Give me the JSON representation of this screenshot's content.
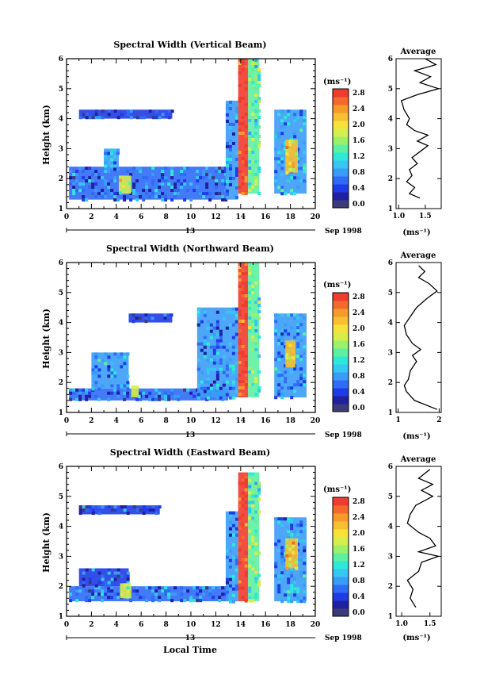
{
  "chart_data": [
    {
      "type": "heatmap",
      "title": "Spectral Width (Vertical Beam)",
      "ylabel": "Height (km)",
      "xlim": [
        0,
        20
      ],
      "ylim": [
        1,
        6
      ],
      "x_ticks": [
        "0",
        "2",
        "4",
        "6",
        "8",
        "10",
        "12",
        "14",
        "16",
        "18",
        "20"
      ],
      "y_ticks": [
        "1",
        "2",
        "3",
        "4",
        "5",
        "6"
      ],
      "date_day": "13",
      "date_label": "Sep 1998",
      "colorbar": {
        "unit": "(ms⁻¹)",
        "labels": [
          "2.8",
          "2.4",
          "2.0",
          "1.6",
          "1.2",
          "0.8",
          "0.4",
          "0.0"
        ],
        "range": [
          0,
          3.0
        ],
        "colors": [
          "#3b3b7a",
          "#2020a0",
          "#1e3ce6",
          "#2f6cf6",
          "#3b9cf8",
          "#35c8f0",
          "#2ee8d8",
          "#5ef0a0",
          "#9cf06a",
          "#d6ee4c",
          "#f6e23a",
          "#f8c030",
          "#f69a2c",
          "#f46a2e",
          "#ee3c2e"
        ]
      },
      "regions": [
        {
          "x": [
            0.2,
            12.8
          ],
          "y": [
            1.3,
            2.4
          ],
          "level": 0.7
        },
        {
          "x": [
            12.8,
            13.8
          ],
          "y": [
            1.3,
            4.6
          ],
          "level": 0.8
        },
        {
          "x": [
            13.8,
            14.6
          ],
          "y": [
            1.5,
            6.0
          ],
          "level": 2.9
        },
        {
          "x": [
            14.6,
            15.5
          ],
          "y": [
            1.5,
            6.0
          ],
          "level": 1.5
        },
        {
          "x": [
            16.7,
            19.3
          ],
          "y": [
            1.5,
            4.3
          ],
          "level": 0.9
        },
        {
          "x": [
            17.6,
            18.6
          ],
          "y": [
            2.2,
            3.3
          ],
          "level": 2.2
        },
        {
          "x": [
            4.2,
            5.2
          ],
          "y": [
            1.5,
            2.1
          ],
          "level": 1.9
        },
        {
          "x": [
            1.0,
            8.5
          ],
          "y": [
            4.0,
            4.3
          ],
          "level": 0.5
        },
        {
          "x": [
            3.0,
            4.2
          ],
          "y": [
            2.3,
            3.0
          ],
          "level": 0.8
        }
      ],
      "average": {
        "title": "Average",
        "xlabel": "(ms⁻¹)",
        "xlim": [
          0.95,
          1.8
        ],
        "x_ticks": [
          "1.0",
          "1.5"
        ],
        "x_tick_values": [
          1.0,
          1.5
        ],
        "points": [
          [
            1.4,
            1.35
          ],
          [
            1.2,
            1.5
          ],
          [
            1.3,
            1.7
          ],
          [
            1.15,
            1.9
          ],
          [
            1.25,
            2.1
          ],
          [
            1.2,
            2.3
          ],
          [
            1.35,
            2.5
          ],
          [
            1.25,
            2.7
          ],
          [
            1.4,
            2.9
          ],
          [
            1.55,
            3.1
          ],
          [
            1.35,
            3.25
          ],
          [
            1.55,
            3.45
          ],
          [
            1.3,
            3.6
          ],
          [
            1.15,
            3.8
          ],
          [
            1.2,
            4.0
          ],
          [
            1.1,
            4.3
          ],
          [
            1.05,
            4.6
          ],
          [
            1.35,
            4.8
          ],
          [
            1.75,
            5.0
          ],
          [
            1.4,
            5.2
          ],
          [
            1.6,
            5.4
          ],
          [
            1.3,
            5.6
          ],
          [
            1.7,
            5.8
          ],
          [
            1.5,
            6.0
          ]
        ]
      }
    },
    {
      "type": "heatmap",
      "title": "Spectral Width (Northward Beam)",
      "ylabel": "Height (km)",
      "xlim": [
        0,
        20
      ],
      "ylim": [
        1,
        6
      ],
      "x_ticks": [
        "0",
        "2",
        "4",
        "6",
        "8",
        "10",
        "12",
        "14",
        "16",
        "18",
        "20"
      ],
      "y_ticks": [
        "1",
        "2",
        "3",
        "4",
        "5",
        "6"
      ],
      "date_day": "13",
      "date_label": "Sep 1998",
      "colorbar": {
        "unit": "(ms⁻¹)",
        "labels": [
          "2.8",
          "2.4",
          "2.0",
          "1.6",
          "1.2",
          "0.8",
          "0.4",
          "0.0"
        ],
        "range": [
          0,
          3.0
        ],
        "colors": [
          "#3b3b7a",
          "#2020a0",
          "#1e3ce6",
          "#2f6cf6",
          "#3b9cf8",
          "#35c8f0",
          "#2ee8d8",
          "#5ef0a0",
          "#9cf06a",
          "#d6ee4c",
          "#f6e23a",
          "#f8c030",
          "#f69a2c",
          "#f46a2e",
          "#ee3c2e"
        ]
      },
      "regions": [
        {
          "x": [
            0.2,
            13.0
          ],
          "y": [
            1.4,
            1.8
          ],
          "level": 0.7
        },
        {
          "x": [
            2.0,
            5.0
          ],
          "y": [
            1.8,
            3.0
          ],
          "level": 0.9
        },
        {
          "x": [
            10.5,
            13.8
          ],
          "y": [
            1.5,
            4.5
          ],
          "level": 0.8
        },
        {
          "x": [
            13.8,
            14.6
          ],
          "y": [
            1.5,
            6.0
          ],
          "level": 2.9
        },
        {
          "x": [
            14.6,
            15.5
          ],
          "y": [
            1.5,
            6.0
          ],
          "level": 1.5
        },
        {
          "x": [
            16.7,
            19.3
          ],
          "y": [
            1.5,
            4.3
          ],
          "level": 0.9
        },
        {
          "x": [
            17.6,
            18.4
          ],
          "y": [
            2.5,
            3.4
          ],
          "level": 2.2
        },
        {
          "x": [
            5.0,
            8.5
          ],
          "y": [
            4.0,
            4.3
          ],
          "level": 0.5
        },
        {
          "x": [
            5.2,
            5.8
          ],
          "y": [
            1.5,
            1.9
          ],
          "level": 1.9
        }
      ],
      "average": {
        "title": "Average",
        "xlabel": "(ms⁻¹)",
        "xlim": [
          0.95,
          2.05
        ],
        "x_ticks": [
          "1",
          "2"
        ],
        "x_tick_values": [
          1.0,
          2.0
        ],
        "points": [
          [
            1.95,
            1.1
          ],
          [
            1.4,
            1.4
          ],
          [
            1.2,
            1.7
          ],
          [
            1.15,
            1.9
          ],
          [
            1.25,
            2.1
          ],
          [
            1.3,
            2.4
          ],
          [
            1.45,
            2.7
          ],
          [
            1.35,
            2.9
          ],
          [
            1.55,
            3.1
          ],
          [
            1.35,
            3.3
          ],
          [
            1.2,
            3.6
          ],
          [
            1.15,
            3.9
          ],
          [
            1.3,
            4.2
          ],
          [
            1.45,
            4.5
          ],
          [
            1.7,
            4.8
          ],
          [
            1.95,
            5.05
          ],
          [
            1.75,
            5.3
          ],
          [
            1.5,
            5.5
          ],
          [
            1.65,
            5.7
          ],
          [
            1.5,
            5.9
          ]
        ]
      }
    },
    {
      "type": "heatmap",
      "title": "Spectral Width (Eastward Beam)",
      "xlabel": "Local Time",
      "ylabel": "Height (km)",
      "xlim": [
        0,
        20
      ],
      "ylim": [
        1,
        6
      ],
      "x_ticks": [
        "0",
        "2",
        "4",
        "6",
        "8",
        "10",
        "12",
        "14",
        "16",
        "18",
        "20"
      ],
      "y_ticks": [
        "1",
        "2",
        "3",
        "4",
        "5",
        "6"
      ],
      "date_day": "13",
      "date_label": "Sep 1998",
      "colorbar": {
        "unit": "(ms⁻¹)",
        "labels": [
          "2.8",
          "2.4",
          "2.0",
          "1.6",
          "1.2",
          "0.8",
          "0.4",
          "0.0"
        ],
        "range": [
          0,
          3.0
        ],
        "colors": [
          "#3b3b7a",
          "#2020a0",
          "#1e3ce6",
          "#2f6cf6",
          "#3b9cf8",
          "#35c8f0",
          "#2ee8d8",
          "#5ef0a0",
          "#9cf06a",
          "#d6ee4c",
          "#f6e23a",
          "#f8c030",
          "#f69a2c",
          "#f46a2e",
          "#ee3c2e"
        ]
      },
      "regions": [
        {
          "x": [
            0.2,
            13.0
          ],
          "y": [
            1.5,
            2.0
          ],
          "level": 0.7
        },
        {
          "x": [
            1.0,
            5.0
          ],
          "y": [
            2.0,
            2.6
          ],
          "level": 0.6
        },
        {
          "x": [
            12.8,
            13.8
          ],
          "y": [
            1.5,
            4.5
          ],
          "level": 0.8
        },
        {
          "x": [
            13.8,
            14.6
          ],
          "y": [
            1.5,
            5.8
          ],
          "level": 2.9
        },
        {
          "x": [
            14.6,
            15.5
          ],
          "y": [
            1.5,
            5.8
          ],
          "level": 1.5
        },
        {
          "x": [
            16.7,
            19.3
          ],
          "y": [
            1.5,
            4.3
          ],
          "level": 0.9
        },
        {
          "x": [
            17.6,
            18.6
          ],
          "y": [
            2.6,
            3.6
          ],
          "level": 2.2
        },
        {
          "x": [
            1.0,
            7.5
          ],
          "y": [
            4.4,
            4.7
          ],
          "level": 0.5
        },
        {
          "x": [
            4.3,
            5.2
          ],
          "y": [
            1.6,
            2.1
          ],
          "level": 1.9
        }
      ],
      "average": {
        "title": "Average",
        "xlabel": "(ms⁻¹)",
        "xlim": [
          0.9,
          1.7
        ],
        "x_ticks": [
          "1.0",
          "1.5"
        ],
        "x_tick_values": [
          1.0,
          1.5
        ],
        "points": [
          [
            1.25,
            1.3
          ],
          [
            1.15,
            1.6
          ],
          [
            1.2,
            1.9
          ],
          [
            1.1,
            2.2
          ],
          [
            1.3,
            2.5
          ],
          [
            1.35,
            2.8
          ],
          [
            1.65,
            3.0
          ],
          [
            1.3,
            3.15
          ],
          [
            1.6,
            3.35
          ],
          [
            1.5,
            3.6
          ],
          [
            1.3,
            3.8
          ],
          [
            1.1,
            4.1
          ],
          [
            1.15,
            4.4
          ],
          [
            1.25,
            4.7
          ],
          [
            1.55,
            5.0
          ],
          [
            1.35,
            5.2
          ],
          [
            1.55,
            5.4
          ],
          [
            1.3,
            5.6
          ],
          [
            1.5,
            5.9
          ]
        ]
      }
    }
  ]
}
